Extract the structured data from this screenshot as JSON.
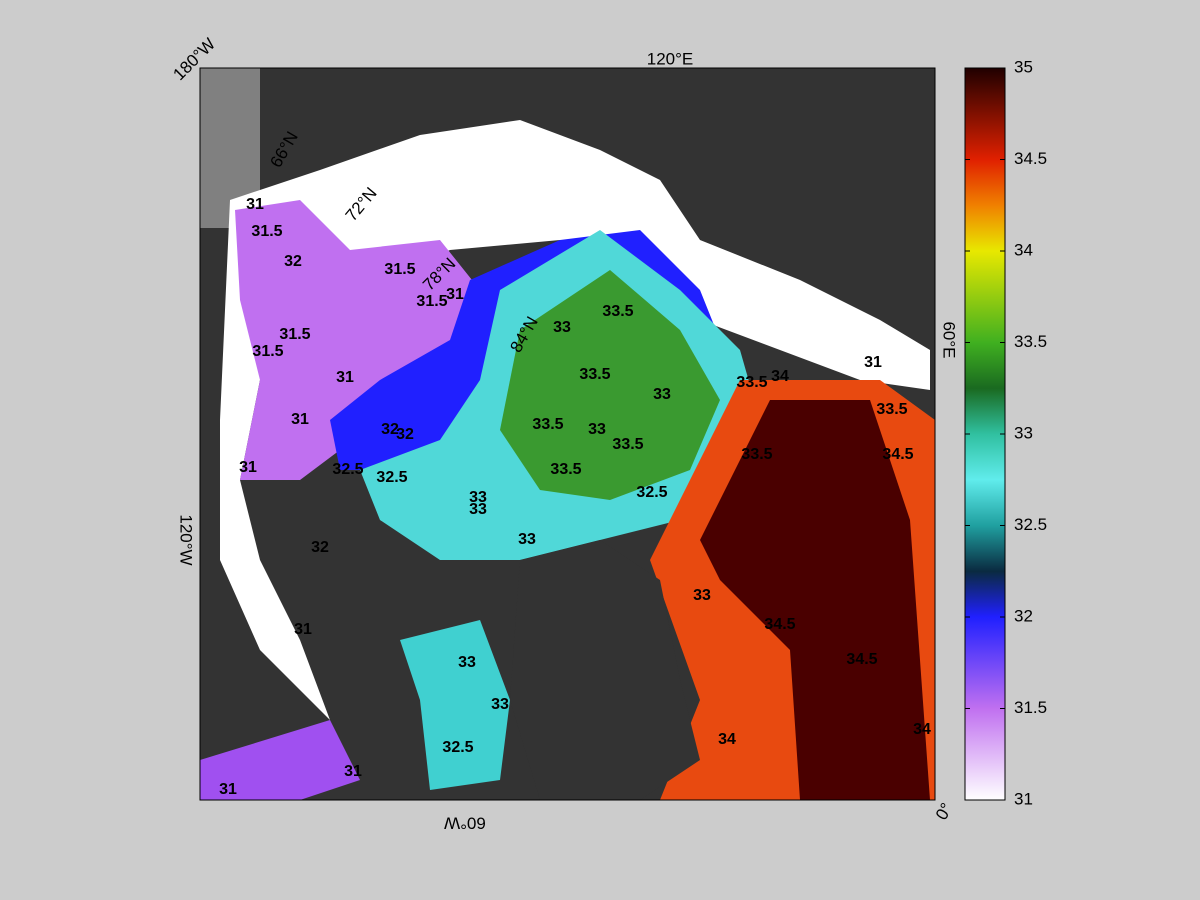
{
  "map": {
    "lon_labels": [
      "180°W",
      "120°E",
      "60°E",
      "0°",
      "60°W",
      "120°W"
    ],
    "lat_labels": [
      "66°N",
      "72°N",
      "78°N",
      "84°N"
    ],
    "contour_labels": [
      31,
      31.5,
      32,
      31.5,
      31.5,
      31,
      31.5,
      31.5,
      31,
      31,
      31,
      32.5,
      32.5,
      32,
      32,
      33,
      33.5,
      33,
      33.5,
      33.5,
      33,
      33.5,
      33,
      33.5,
      33,
      33,
      34,
      33.5,
      33.5,
      34.5,
      32.5,
      33,
      34.5,
      34.5,
      34,
      34,
      33,
      33,
      32.5,
      31,
      31,
      31,
      32,
      31,
      33.5
    ]
  },
  "colorbar": {
    "lim": [
      31,
      35
    ],
    "ticks": [
      31,
      31.5,
      32,
      32.5,
      33,
      33.5,
      34,
      34.5,
      35
    ],
    "colormap": [
      [
        31,
        "#ffffff"
      ],
      [
        31.5,
        "#c070f0"
      ],
      [
        32,
        "#2020ff"
      ],
      [
        32.25,
        "#0a2a40"
      ],
      [
        32.5,
        "#20a0a0"
      ],
      [
        32.75,
        "#60ecec"
      ],
      [
        33,
        "#30c0a0"
      ],
      [
        33.25,
        "#1a6a20"
      ],
      [
        33.5,
        "#40b020"
      ],
      [
        34,
        "#e8e800"
      ],
      [
        34.25,
        "#f08000"
      ],
      [
        34.5,
        "#e02000"
      ],
      [
        35,
        "#200000"
      ]
    ]
  }
}
